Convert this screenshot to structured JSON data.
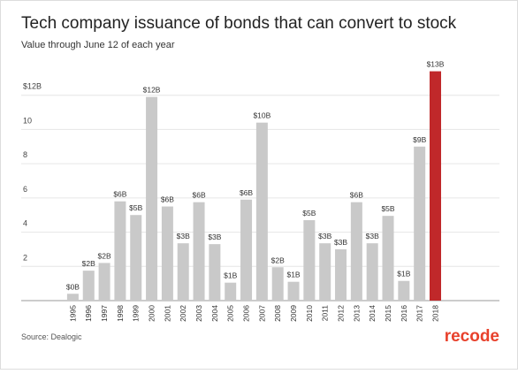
{
  "chart_data": {
    "type": "bar",
    "title": "Tech company issuance of bonds that can convert to stock",
    "subtitle": "Value through June 12 of each year",
    "source": "Source: Dealogic",
    "brand": "recode",
    "categories": [
      "1995",
      "1996",
      "1997",
      "1998",
      "1999",
      "2000",
      "2001",
      "2002",
      "2003",
      "2004",
      "2005",
      "2006",
      "2007",
      "2008",
      "2009",
      "2010",
      "2011",
      "2012",
      "2013",
      "2014",
      "2015",
      "2016",
      "2017",
      "2018"
    ],
    "values": [
      0.4,
      1.75,
      2.2,
      5.8,
      5,
      11.9,
      5.5,
      3.35,
      5.75,
      3.3,
      1.05,
      5.9,
      10.4,
      1.95,
      1.1,
      4.7,
      3.35,
      3,
      5.75,
      3.35,
      4.95,
      1.15,
      9,
      13.4
    ],
    "value_labels": [
      "$0B",
      "$2B",
      "$2B",
      "$6B",
      "$5B",
      "$12B",
      "$6B",
      "$3B",
      "$6B",
      "$3B",
      "$1B",
      "$6B",
      "$10B",
      "$2B",
      "$1B",
      "$5B",
      "$3B",
      "$3B",
      "$6B",
      "$3B",
      "$5B",
      "$1B",
      "$9B",
      "$13B"
    ],
    "colors": [
      "#c9c9c9",
      "#c9c9c9",
      "#c9c9c9",
      "#c9c9c9",
      "#c9c9c9",
      "#c9c9c9",
      "#c9c9c9",
      "#c9c9c9",
      "#c9c9c9",
      "#c9c9c9",
      "#c9c9c9",
      "#c9c9c9",
      "#c9c9c9",
      "#c9c9c9",
      "#c9c9c9",
      "#c9c9c9",
      "#c9c9c9",
      "#c9c9c9",
      "#c9c9c9",
      "#c9c9c9",
      "#c9c9c9",
      "#c9c9c9",
      "#c9c9c9",
      "#c0282a"
    ],
    "ylim": [
      0,
      14
    ],
    "yticks": [
      2,
      4,
      6,
      8,
      10,
      {
        "value": 12,
        "label": "$12B"
      }
    ],
    "grid": true
  }
}
